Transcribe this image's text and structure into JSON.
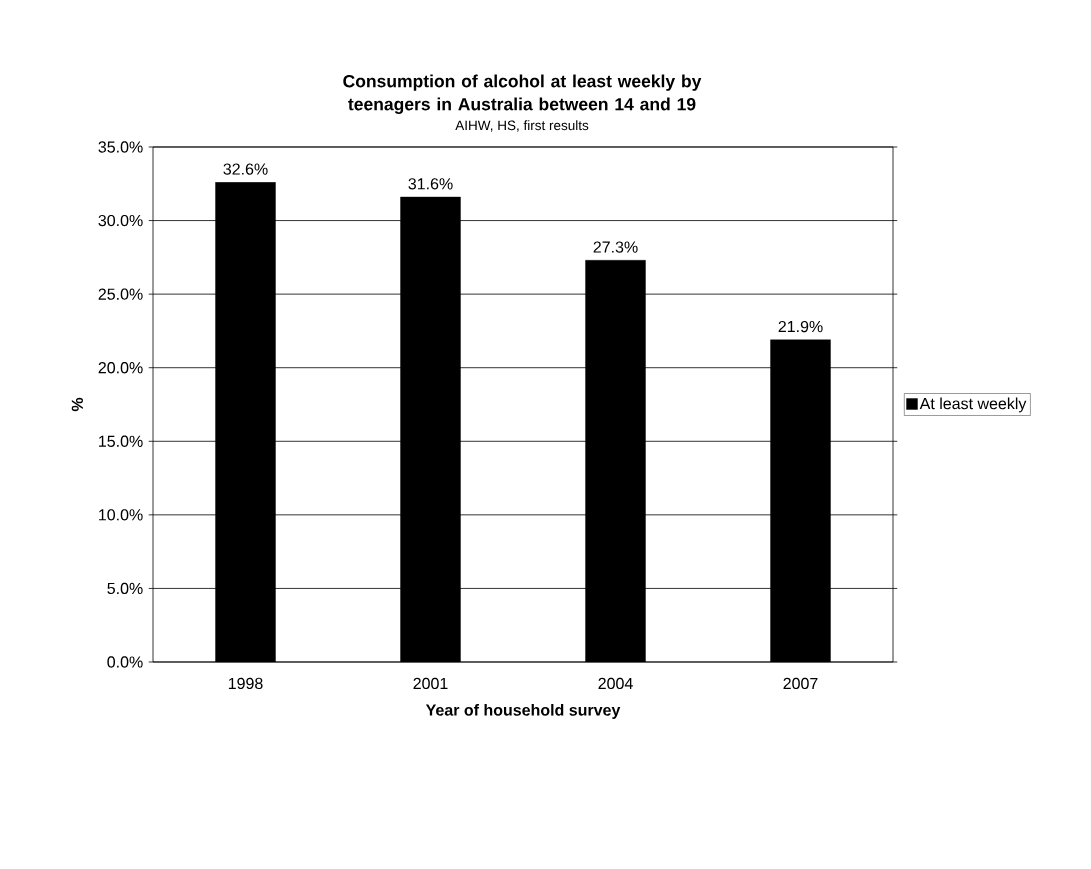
{
  "chart_data": {
    "type": "bar",
    "title": "Consumption of alcohol at least weekly by teenagers in Australia between 14 and 19",
    "subtitle": "AIHW, HS, first results",
    "xlabel": "Year of household survey",
    "ylabel": "%",
    "categories": [
      "1998",
      "2001",
      "2004",
      "2007"
    ],
    "series": [
      {
        "name": "At least weekly",
        "color": "#000000",
        "values": [
          32.6,
          31.6,
          27.3,
          21.9
        ],
        "value_labels": [
          "32.6%",
          "31.6%",
          "27.3%",
          "21.9%"
        ]
      }
    ],
    "ylim": [
      0,
      35
    ],
    "yticks": [
      {
        "value": 0,
        "label": "0.0%"
      },
      {
        "value": 5,
        "label": "5.0%"
      },
      {
        "value": 10,
        "label": "10.0%"
      },
      {
        "value": 15,
        "label": "15.0%"
      },
      {
        "value": 20,
        "label": "20.0%"
      },
      {
        "value": 25,
        "label": "25.0%"
      },
      {
        "value": 30,
        "label": "30.0%"
      },
      {
        "value": 35,
        "label": "35.0%"
      }
    ],
    "grid": "y",
    "legend": "right"
  }
}
